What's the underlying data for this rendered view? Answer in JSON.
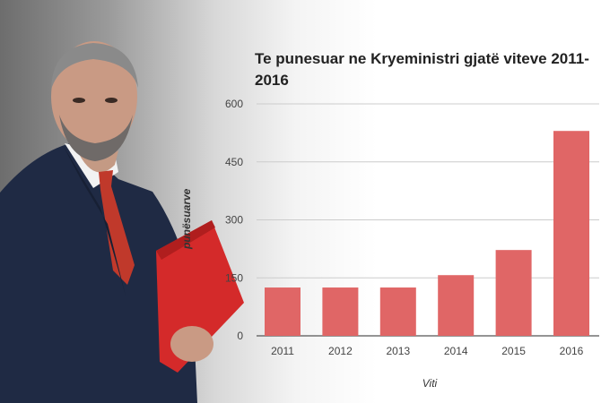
{
  "chart_data": {
    "type": "bar",
    "title": "Te punesuar ne Kryeministri gjatë viteve 2011-2016",
    "xlabel": "Viti",
    "ylabel": "punësuarve",
    "categories": [
      "2011",
      "2012",
      "2013",
      "2014",
      "2015",
      "2016"
    ],
    "values": [
      125,
      125,
      125,
      157,
      222,
      530
    ],
    "ylim": [
      0,
      600
    ],
    "yticks": [
      "0",
      "150",
      "300",
      "450",
      "600"
    ],
    "grid": true,
    "bar_color": "#e06666"
  },
  "photo": {
    "folder_color": "#d42a2a",
    "tie_color": "#c0392b",
    "suit_color": "#1f2a44"
  }
}
